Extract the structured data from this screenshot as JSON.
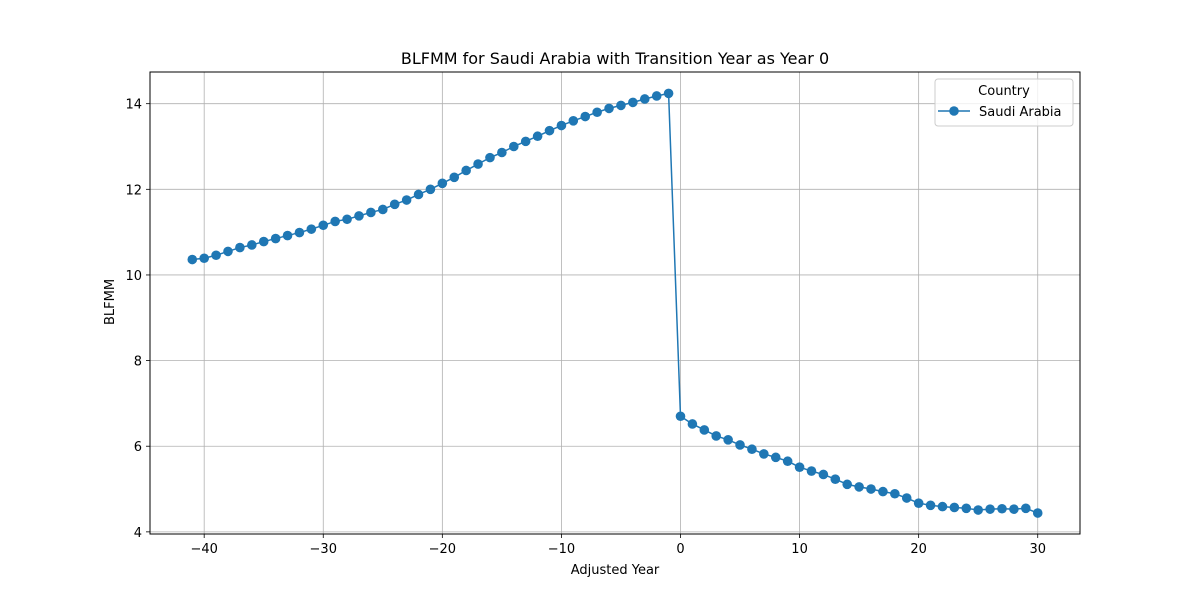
{
  "chart_data": {
    "type": "line",
    "title": "BLFMM for Saudi Arabia with Transition Year as Year 0",
    "xlabel": "Adjusted Year",
    "ylabel": "BLFMM",
    "xlim": [
      -44.55,
      33.55
    ],
    "ylim": [
      3.95,
      14.74
    ],
    "x_ticks": [
      -40,
      -30,
      -20,
      -10,
      0,
      10,
      20,
      30
    ],
    "x_tick_labels": [
      "−40",
      "−30",
      "−20",
      "−10",
      "0",
      "10",
      "20",
      "30"
    ],
    "y_ticks": [
      4,
      6,
      8,
      10,
      12,
      14
    ],
    "y_tick_labels": [
      "4",
      "6",
      "8",
      "10",
      "12",
      "14"
    ],
    "grid": true,
    "legend": {
      "title": "Country",
      "placement": "upper right"
    },
    "series": [
      {
        "name": "Saudi Arabia",
        "color": "#1f77b4",
        "marker": "circle",
        "x": [
          -41,
          -40,
          -39,
          -38,
          -37,
          -36,
          -35,
          -34,
          -33,
          -32,
          -31,
          -30,
          -29,
          -28,
          -27,
          -26,
          -25,
          -24,
          -23,
          -22,
          -21,
          -20,
          -19,
          -18,
          -17,
          -16,
          -15,
          -14,
          -13,
          -12,
          -11,
          -10,
          -9,
          -8,
          -7,
          -6,
          -5,
          -4,
          -3,
          -2,
          -1,
          0,
          1,
          2,
          3,
          4,
          5,
          6,
          7,
          8,
          9,
          10,
          11,
          12,
          13,
          14,
          15,
          16,
          17,
          18,
          19,
          20,
          21,
          22,
          23,
          24,
          25,
          26,
          27,
          28,
          29,
          30
        ],
        "y": [
          10.36,
          10.39,
          10.46,
          10.55,
          10.64,
          10.7,
          10.78,
          10.85,
          10.92,
          10.99,
          11.07,
          11.16,
          11.25,
          11.3,
          11.38,
          11.46,
          11.53,
          11.65,
          11.75,
          11.88,
          12.0,
          12.14,
          12.28,
          12.44,
          12.59,
          12.74,
          12.86,
          13.0,
          13.12,
          13.24,
          13.37,
          13.49,
          13.6,
          13.7,
          13.8,
          13.89,
          13.96,
          14.03,
          14.11,
          14.18,
          14.24,
          6.7,
          6.52,
          6.38,
          6.24,
          6.15,
          6.03,
          5.93,
          5.82,
          5.74,
          5.65,
          5.51,
          5.42,
          5.34,
          5.23,
          5.11,
          5.05,
          5.0,
          4.94,
          4.89,
          4.79,
          4.67,
          4.62,
          4.59,
          4.57,
          4.55,
          4.51,
          4.53,
          4.54,
          4.53,
          4.55,
          4.44
        ]
      }
    ]
  }
}
